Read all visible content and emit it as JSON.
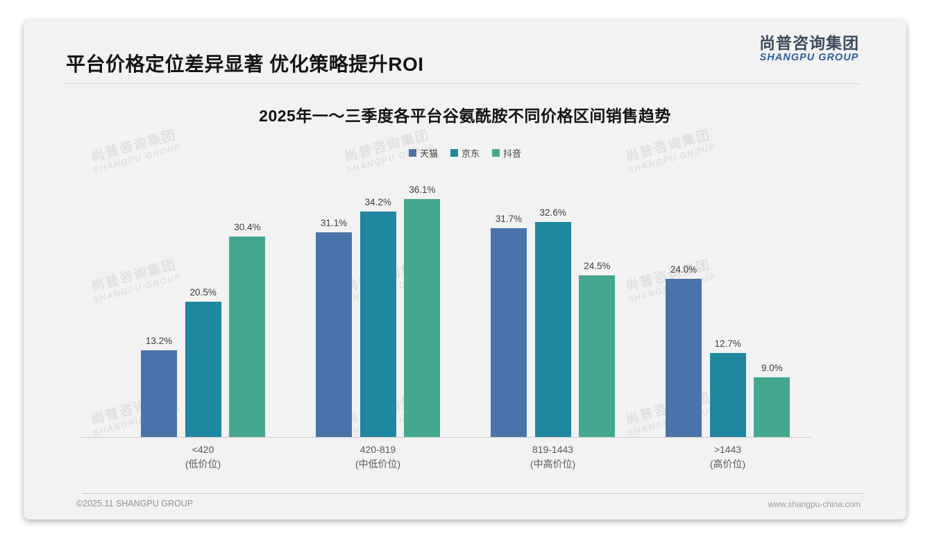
{
  "header": {
    "title": "平台价格定位差异显著 优化策略提升ROI"
  },
  "logo": {
    "cn": "尚普咨询集团",
    "en": "SHANGPU GROUP"
  },
  "watermark": {
    "cn": "尚普咨询集团",
    "en": "SHANGPU GROUP"
  },
  "footer": {
    "left": "©2025.11 SHANGPU GROUP",
    "right": "www.shangpu-china.com"
  },
  "colors": {
    "logo_blue": "#2d5f97",
    "slide_bg": "#f2f2f2",
    "axis": "#cbcbcb"
  },
  "chart_data": {
    "type": "bar",
    "title": "2025年一～三季度各平台谷氨酰胺不同价格区间销售趋势",
    "unit": "%",
    "grid": false,
    "y_axis_visible": false,
    "ylim": [
      0,
      40
    ],
    "legend_position": "top",
    "categories": [
      {
        "range": "<420",
        "tier": "(低价位)"
      },
      {
        "range": "420-819",
        "tier": "(中低价位)"
      },
      {
        "range": "819-1443",
        "tier": "(中高价位)"
      },
      {
        "range": ">1443",
        "tier": "(高价位)"
      }
    ],
    "series": [
      {
        "name": "天猫",
        "color": "#4a74a9",
        "values": [
          13.2,
          31.1,
          31.7,
          24.0
        ],
        "labels": [
          "13.2%",
          "31.1%",
          "31.7%",
          "24.0%"
        ]
      },
      {
        "name": "京东",
        "color": "#1f87a0",
        "values": [
          20.5,
          34.2,
          32.6,
          12.7
        ],
        "labels": [
          "20.5%",
          "34.2%",
          "32.6%",
          "12.7%"
        ]
      },
      {
        "name": "抖音",
        "color": "#45a78f",
        "values": [
          30.4,
          36.1,
          24.5,
          9.0
        ],
        "labels": [
          "30.4%",
          "36.1%",
          "24.5%",
          "9.0%"
        ]
      }
    ]
  }
}
